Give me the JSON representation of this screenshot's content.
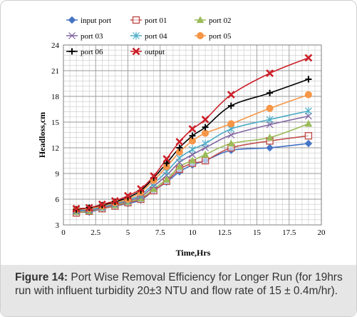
{
  "caption": {
    "label": "Figure 14:",
    "text": " Port Wise Removal Efficiency for Longer Run (for 19hrs run with influent turbidity 20±3 NTU and flow rate of 15 ± 0.4m/hr)."
  },
  "chart_data": {
    "type": "scatter",
    "title": "",
    "xlabel": "Time,Hrs",
    "ylabel": "Headloss,cm",
    "xlim": [
      0,
      20
    ],
    "ylim": [
      3,
      24
    ],
    "xticks": [
      0,
      2.5,
      5,
      7.5,
      10,
      12.5,
      15,
      17.5,
      20
    ],
    "yticks": [
      3,
      6,
      9,
      12,
      15,
      18,
      21,
      24
    ],
    "grid": true,
    "legend": "top, 3 columns",
    "x": [
      1,
      2,
      3,
      4,
      5,
      6,
      7,
      8,
      9,
      10,
      11,
      13,
      16,
      19
    ],
    "series": [
      {
        "name": "input port",
        "marker": "diamond",
        "color": "#4472c4",
        "values": [
          4.5,
          4.5,
          4.9,
          5.2,
          5.5,
          5.9,
          7.0,
          8.0,
          9.2,
          10.0,
          10.5,
          11.7,
          12.0,
          12.5
        ]
      },
      {
        "name": "port 01",
        "marker": "square",
        "color": "#c0504d",
        "values": [
          4.4,
          4.6,
          4.9,
          5.2,
          5.6,
          6.0,
          7.0,
          8.1,
          9.5,
          10.2,
          10.5,
          12.0,
          12.8,
          13.4
        ]
      },
      {
        "name": "port 02",
        "marker": "triangle",
        "color": "#9bbb59",
        "values": [
          4.5,
          4.6,
          5.0,
          5.3,
          5.7,
          6.1,
          7.2,
          8.3,
          9.8,
          10.5,
          11.2,
          12.5,
          13.2,
          14.8
        ]
      },
      {
        "name": "port 03",
        "marker": "x",
        "color": "#8064a2",
        "values": [
          4.6,
          4.7,
          5.0,
          5.4,
          5.8,
          6.3,
          7.5,
          8.8,
          10.3,
          11.2,
          12.0,
          13.5,
          14.7,
          15.7
        ]
      },
      {
        "name": "port 04",
        "marker": "asterisk",
        "color": "#4bacc6",
        "values": [
          4.7,
          4.8,
          5.1,
          5.5,
          5.9,
          6.5,
          7.8,
          9.2,
          10.8,
          11.8,
          12.5,
          14.2,
          15.3,
          16.3
        ]
      },
      {
        "name": "port 05",
        "marker": "circle",
        "color": "#f79646",
        "values": [
          4.8,
          4.9,
          5.2,
          5.6,
          6.0,
          6.8,
          8.2,
          9.8,
          11.5,
          12.8,
          13.7,
          14.8,
          16.6,
          18.2
        ]
      },
      {
        "name": "port 06",
        "marker": "plus",
        "color": "#000000",
        "values": [
          4.8,
          5.0,
          5.3,
          5.7,
          6.2,
          7.0,
          8.5,
          10.2,
          12.0,
          13.4,
          14.4,
          16.9,
          18.4,
          20.0
        ]
      },
      {
        "name": "output",
        "marker": "star",
        "color": "#cc1f28",
        "values": [
          4.9,
          5.0,
          5.4,
          5.8,
          6.4,
          7.2,
          8.7,
          10.7,
          12.7,
          14.2,
          15.3,
          18.2,
          20.7,
          22.5
        ]
      }
    ]
  }
}
